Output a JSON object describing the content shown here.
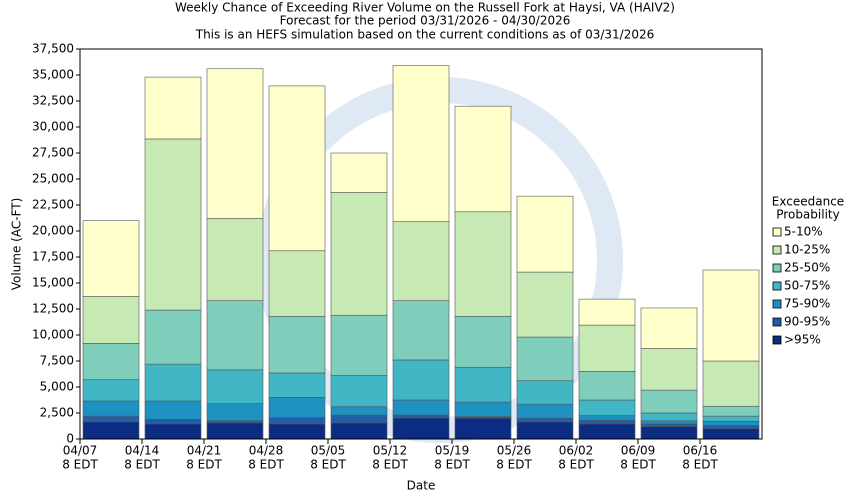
{
  "chart_data": {
    "type": "stacked_bar",
    "title": "Weekly Chance of Exceeding River Volume on the Russell Fork at Haysi, VA (HAIV2)",
    "subtitle": [
      "Forecast for the period 03/31/2026 - 04/30/2026",
      "This is an HEFS simulation based on the current conditions as of 03/31/2026"
    ],
    "x_label": "Date",
    "y_label": "Volume (AC-FT)",
    "categories": [
      "04/07",
      "04/14",
      "04/21",
      "04/28",
      "05/05",
      "05/12",
      "05/19",
      "05/26",
      "06/02",
      "06/09",
      "06/16"
    ],
    "category_sublabel": "8 EDT",
    "legend_title": [
      "Exceedance",
      "Probability"
    ],
    "ylim": [
      0,
      37500
    ],
    "yticks": [
      0,
      {
        "value": 2500,
        "label": "2,500"
      },
      {
        "value": 5000,
        "label": "5,000"
      },
      {
        "value": 7500,
        "label": "7,500"
      },
      {
        "value": 10000,
        "label": "10,000"
      },
      {
        "value": 12500,
        "label": "12,500"
      },
      {
        "value": 15000,
        "label": "15,000"
      },
      {
        "value": 17500,
        "label": "17,500"
      },
      {
        "value": 20000,
        "label": "20,000"
      },
      {
        "value": 22500,
        "label": "22,500"
      },
      {
        "value": 25000,
        "label": "25,000"
      },
      {
        "value": 27500,
        "label": "27,500"
      },
      {
        "value": 30000,
        "label": "30,000"
      },
      {
        "value": 32500,
        "label": "32,500"
      },
      {
        "value": 35000,
        "label": "35,000"
      },
      {
        "value": 37500,
        "label": "37,500"
      }
    ],
    "grid": false,
    "series": [
      {
        "name": "5-10%",
        "color": "#ffffcc",
        "values": [
          7300,
          5950,
          14400,
          15850,
          3800,
          15000,
          10150,
          7300,
          2500,
          3900,
          8750
        ]
      },
      {
        "name": "10-25%",
        "color": "#c7e9b4",
        "values": [
          4500,
          16450,
          7900,
          6300,
          11800,
          7600,
          10050,
          6250,
          4450,
          4000,
          4350
        ]
      },
      {
        "name": "25-50%",
        "color": "#7fcdbb",
        "values": [
          3500,
          5200,
          6650,
          5450,
          5800,
          5700,
          4900,
          4200,
          2750,
          2200,
          950
        ]
      },
      {
        "name": "50-75%",
        "color": "#41b6c4",
        "values": [
          2050,
          3550,
          3250,
          2350,
          3000,
          3850,
          3350,
          2250,
          1500,
          750,
          500
        ]
      },
      {
        "name": "75-90%",
        "color": "#1d91c0",
        "values": [
          1450,
          1750,
          1650,
          1950,
          800,
          1450,
          1400,
          1350,
          450,
          300,
          400
        ]
      },
      {
        "name": "90-95%",
        "color": "#225ea8",
        "values": [
          550,
          450,
          200,
          600,
          750,
          300,
          150,
          350,
          350,
          250,
          300
        ]
      },
      {
        "name": ">95%",
        "color": "#0c2c84",
        "values": [
          1650,
          1450,
          1550,
          1450,
          1550,
          2000,
          2000,
          1650,
          1450,
          1200,
          1000
        ]
      }
    ]
  }
}
